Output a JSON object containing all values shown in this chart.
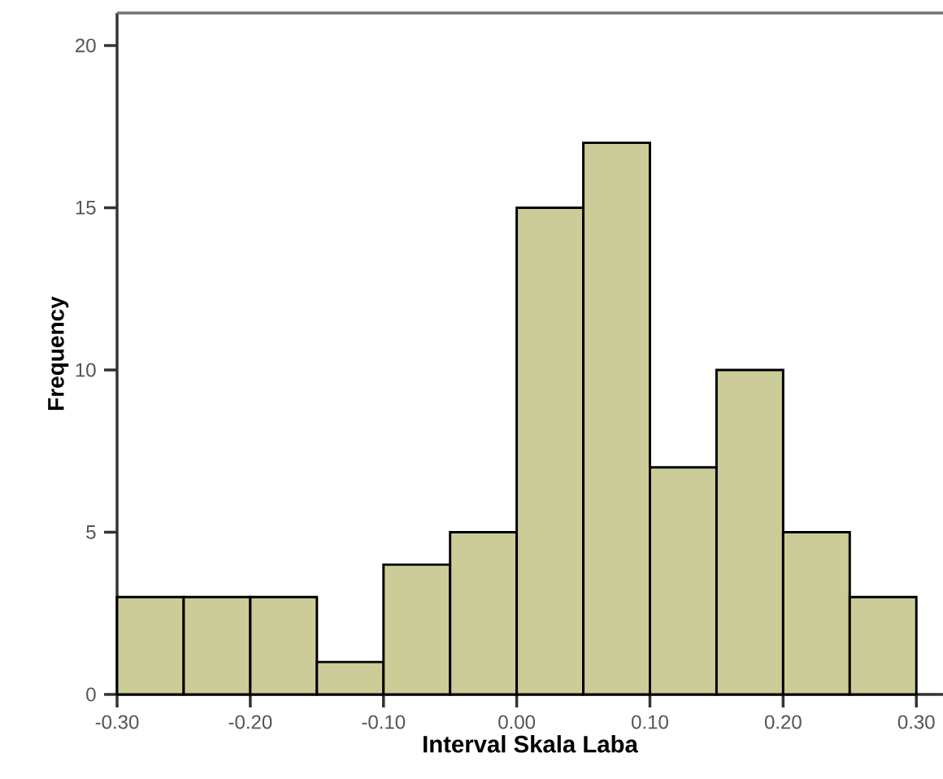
{
  "chart_data": {
    "type": "histogram",
    "xlabel": "Interval Skala Laba",
    "ylabel": "Frequency",
    "bins": [
      -0.3,
      -0.25,
      -0.2,
      -0.15,
      -0.1,
      -0.05,
      0.0,
      0.05,
      0.1,
      0.15,
      0.2,
      0.25,
      0.3
    ],
    "values": [
      3,
      3,
      3,
      1,
      4,
      5,
      15,
      17,
      7,
      10,
      5,
      3
    ],
    "color": "#cccc99",
    "xlim": [
      -0.3,
      0.32
    ],
    "ylim": [
      0,
      21
    ],
    "xticks": [
      {
        "value": -0.3,
        "label": "-0.30"
      },
      {
        "value": -0.2,
        "label": "-0.20"
      },
      {
        "value": -0.1,
        "label": "-0.10"
      },
      {
        "value": 0.0,
        "label": "0.00"
      },
      {
        "value": 0.1,
        "label": "0.10"
      },
      {
        "value": 0.2,
        "label": "0.20"
      },
      {
        "value": 0.3,
        "label": "0.30"
      }
    ],
    "yticks": [
      0,
      5,
      10,
      15,
      20
    ],
    "grid": false
  }
}
